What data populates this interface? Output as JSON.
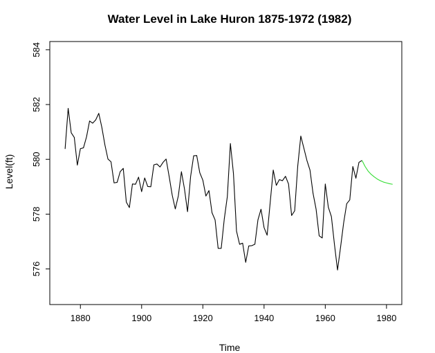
{
  "chart_data": {
    "type": "line",
    "title": "Water Level in Lake Huron 1875-1972 (1982)",
    "xlabel": "Time",
    "ylabel": "Level(ft)",
    "xlim": [
      1870,
      1985
    ],
    "ylim": [
      574.7,
      584.3
    ],
    "xticks": [
      1880,
      1900,
      1920,
      1940,
      1960,
      1980
    ],
    "yticks": [
      576,
      578,
      580,
      582,
      584
    ],
    "grid": false,
    "series": [
      {
        "color": "#000000",
        "x": [
          1875,
          1876,
          1877,
          1878,
          1879,
          1880,
          1881,
          1882,
          1883,
          1884,
          1885,
          1886,
          1887,
          1888,
          1889,
          1890,
          1891,
          1892,
          1893,
          1894,
          1895,
          1896,
          1897,
          1898,
          1899,
          1900,
          1901,
          1902,
          1903,
          1904,
          1905,
          1906,
          1907,
          1908,
          1909,
          1910,
          1911,
          1912,
          1913,
          1914,
          1915,
          1916,
          1917,
          1918,
          1919,
          1920,
          1921,
          1922,
          1923,
          1924,
          1925,
          1926,
          1927,
          1928,
          1929,
          1930,
          1931,
          1932,
          1933,
          1934,
          1935,
          1936,
          1937,
          1938,
          1939,
          1940,
          1941,
          1942,
          1943,
          1944,
          1945,
          1946,
          1947,
          1948,
          1949,
          1950,
          1951,
          1952,
          1953,
          1954,
          1955,
          1956,
          1957,
          1958,
          1959,
          1960,
          1961,
          1962,
          1963,
          1964,
          1965,
          1966,
          1967,
          1968,
          1969,
          1970,
          1971,
          1972
        ],
        "y": [
          580.38,
          581.86,
          580.97,
          580.8,
          579.79,
          580.39,
          580.42,
          580.82,
          581.4,
          581.32,
          581.44,
          581.68,
          581.17,
          580.53,
          580.01,
          579.91,
          579.14,
          579.16,
          579.55,
          579.67,
          578.44,
          578.24,
          579.1,
          579.09,
          579.35,
          578.82,
          579.32,
          579.01,
          579.0,
          579.8,
          579.83,
          579.72,
          579.89,
          580.01,
          579.37,
          578.69,
          578.19,
          578.67,
          579.55,
          578.92,
          578.09,
          579.37,
          580.13,
          580.14,
          579.51,
          579.24,
          578.66,
          578.86,
          578.05,
          577.79,
          576.75,
          576.75,
          577.82,
          578.64,
          580.58,
          579.48,
          577.38,
          576.9,
          576.94,
          576.24,
          576.84,
          576.85,
          576.9,
          577.79,
          578.18,
          577.51,
          577.23,
          578.42,
          579.61,
          579.05,
          579.26,
          579.22,
          579.38,
          579.1,
          577.95,
          578.12,
          579.75,
          580.85,
          580.41,
          579.96,
          579.61,
          578.76,
          578.18,
          577.21,
          577.13,
          579.1,
          578.25,
          577.91,
          576.89,
          575.96,
          576.8,
          577.68,
          578.38,
          578.52,
          579.74,
          579.31,
          579.89,
          579.96
        ]
      },
      {
        "color": "#33dd33",
        "x": [
          1972,
          1973,
          1974,
          1975,
          1976,
          1977,
          1978,
          1979,
          1980,
          1981,
          1982
        ],
        "y": [
          579.96,
          579.74,
          579.57,
          579.45,
          579.36,
          579.28,
          579.22,
          579.17,
          579.14,
          579.11,
          579.09
        ]
      }
    ]
  }
}
